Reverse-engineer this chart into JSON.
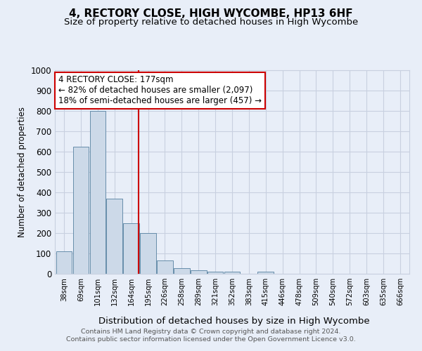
{
  "title": "4, RECTORY CLOSE, HIGH WYCOMBE, HP13 6HF",
  "subtitle": "Size of property relative to detached houses in High Wycombe",
  "xlabel": "Distribution of detached houses by size in High Wycombe",
  "ylabel": "Number of detached properties",
  "categories": [
    "38sqm",
    "69sqm",
    "101sqm",
    "132sqm",
    "164sqm",
    "195sqm",
    "226sqm",
    "258sqm",
    "289sqm",
    "321sqm",
    "352sqm",
    "383sqm",
    "415sqm",
    "446sqm",
    "478sqm",
    "509sqm",
    "540sqm",
    "572sqm",
    "603sqm",
    "635sqm",
    "666sqm"
  ],
  "values": [
    110,
    625,
    800,
    370,
    250,
    200,
    65,
    28,
    18,
    10,
    10,
    0,
    10,
    0,
    0,
    0,
    0,
    0,
    0,
    0,
    0
  ],
  "bar_color": "#ccd9e8",
  "bar_edge_color": "#5580a0",
  "ylim": [
    0,
    1000
  ],
  "yticks": [
    0,
    100,
    200,
    300,
    400,
    500,
    600,
    700,
    800,
    900,
    1000
  ],
  "vline_color": "#cc0000",
  "annotation_text": "4 RECTORY CLOSE: 177sqm\n← 82% of detached houses are smaller (2,097)\n18% of semi-detached houses are larger (457) →",
  "annotation_box_color": "#cc0000",
  "footer_line1": "Contains HM Land Registry data © Crown copyright and database right 2024.",
  "footer_line2": "Contains public sector information licensed under the Open Government Licence v3.0.",
  "background_color": "#e8eef8",
  "grid_color": "#c8d0e0",
  "title_fontsize": 11,
  "subtitle_fontsize": 9.5,
  "vline_index": 4.42
}
